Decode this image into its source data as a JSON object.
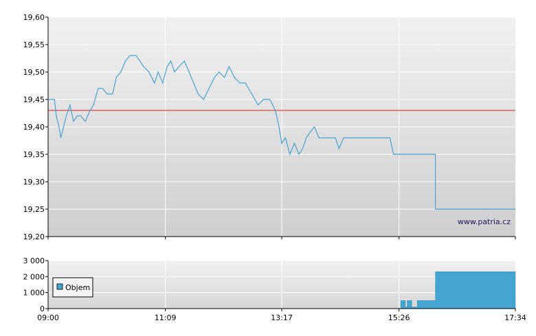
{
  "watermark": "www.patria.cz",
  "colors": {
    "price_line": "#4aa3d0",
    "reference_line": "#d02020",
    "volume_fill": "#45a5d2",
    "grid": "#ffffff"
  },
  "chart_data": [
    {
      "type": "line",
      "title": "",
      "xlabel": "",
      "ylabel": "",
      "ylim": [
        19.2,
        19.6
      ],
      "y_ticks": [
        "19,60",
        "19,55",
        "19,50",
        "19,45",
        "19,40",
        "19,35",
        "19,30",
        "19,25",
        "19,20"
      ],
      "x_tick_times": [
        "09:00",
        "11:09",
        "13:17",
        "15:26",
        "17:34"
      ],
      "reference_value": 19.43,
      "grid": true,
      "series": [
        {
          "x": [
            "09:00",
            "09:07",
            "09:09",
            "09:12",
            "09:14",
            "09:17",
            "09:20",
            "09:24",
            "09:28",
            "09:32",
            "09:36",
            "09:41",
            "09:46",
            "09:50",
            "09:55",
            "10:00",
            "10:05",
            "10:11",
            "10:15",
            "10:20",
            "10:25",
            "10:30",
            "10:37",
            "10:45",
            "10:51",
            "10:57",
            "11:01",
            "11:06",
            "11:11",
            "11:15",
            "11:19",
            "11:24",
            "11:30",
            "11:35",
            "11:40",
            "11:45",
            "11:51",
            "11:57",
            "12:03",
            "12:08",
            "12:14",
            "12:19",
            "12:25",
            "12:31",
            "12:37",
            "12:44",
            "12:51",
            "12:57",
            "13:04",
            "13:10",
            "13:14",
            "13:17",
            "13:21",
            "13:26",
            "13:31",
            "13:36",
            "13:40",
            "13:44",
            "13:48",
            "13:53",
            "13:58",
            "14:03",
            "14:07",
            "14:12",
            "14:16",
            "14:20",
            "14:25",
            "14:30",
            "14:35",
            "14:40",
            "14:48",
            "14:57",
            "15:06",
            "15:16",
            "15:20",
            "15:24",
            "15:30",
            "15:36",
            "15:40",
            "15:52",
            "16:06",
            "16:06",
            "17:34"
          ],
          "y": [
            19.45,
            19.45,
            19.42,
            19.4,
            19.38,
            19.4,
            19.42,
            19.44,
            19.41,
            19.42,
            19.42,
            19.41,
            19.43,
            19.44,
            19.47,
            19.47,
            19.46,
            19.46,
            19.49,
            19.5,
            19.52,
            19.53,
            19.53,
            19.51,
            19.5,
            19.48,
            19.5,
            19.48,
            19.51,
            19.52,
            19.5,
            19.51,
            19.52,
            19.5,
            19.48,
            19.46,
            19.45,
            19.47,
            19.49,
            19.5,
            19.49,
            19.51,
            19.49,
            19.48,
            19.48,
            19.46,
            19.44,
            19.45,
            19.45,
            19.43,
            19.4,
            19.37,
            19.38,
            19.35,
            19.37,
            19.35,
            19.36,
            19.38,
            19.39,
            19.4,
            19.38,
            19.38,
            19.38,
            19.38,
            19.38,
            19.36,
            19.38,
            19.38,
            19.38,
            19.38,
            19.38,
            19.38,
            19.38,
            19.38,
            19.35,
            19.35,
            19.35,
            19.35,
            19.35,
            19.35,
            19.35,
            19.25,
            19.25
          ]
        }
      ]
    },
    {
      "type": "area",
      "title": "",
      "xlabel": "",
      "ylabel": "",
      "ylim": [
        0,
        3000
      ],
      "y_ticks": [
        "3 000",
        "2 000",
        "1 000",
        "0"
      ],
      "x_tick_labels": [
        "09:00",
        "11:09",
        "13:17",
        "15:26",
        "17:34"
      ],
      "legend_position": "left",
      "grid": true,
      "series": [
        {
          "name": "Objem",
          "x": [
            "09:00",
            "15:28",
            "15:28",
            "15:33",
            "15:33",
            "15:35",
            "15:35",
            "15:40",
            "15:40",
            "15:46",
            "15:46",
            "16:06",
            "16:06",
            "17:34"
          ],
          "y": [
            0,
            0,
            500,
            500,
            100,
            100,
            500,
            500,
            100,
            100,
            500,
            500,
            2300,
            2300
          ]
        }
      ]
    }
  ]
}
